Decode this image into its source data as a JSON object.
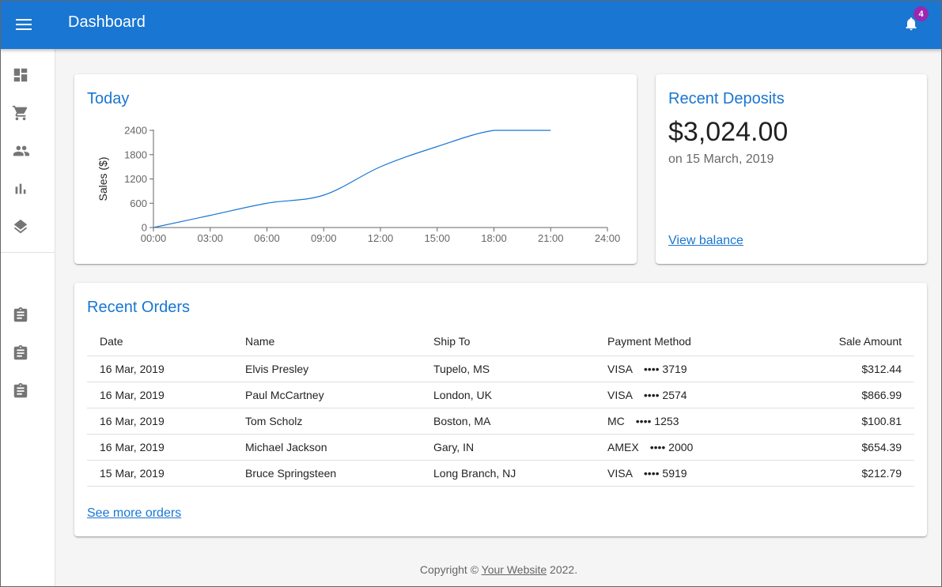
{
  "appbar": {
    "title": "Dashboard",
    "notification_count": "4",
    "color": "#1976d2",
    "icons": {
      "menu": "menu-icon",
      "notifications": "bell-icon"
    }
  },
  "drawer": {
    "main_items": [
      {
        "icon": "dashboard-icon"
      },
      {
        "icon": "shopping-cart-icon"
      },
      {
        "icon": "people-icon"
      },
      {
        "icon": "bar-chart-icon"
      },
      {
        "icon": "layers-icon"
      }
    ],
    "secondary_items": [
      {
        "icon": "assignment-icon"
      },
      {
        "icon": "assignment-icon"
      },
      {
        "icon": "assignment-icon"
      }
    ]
  },
  "today": {
    "title": "Today"
  },
  "chart_data": {
    "type": "line",
    "title": "",
    "xlabel": "",
    "ylabel": "Sales ($)",
    "x_ticks": [
      "00:00",
      "03:00",
      "06:00",
      "09:00",
      "12:00",
      "15:00",
      "18:00",
      "21:00",
      "24:00"
    ],
    "y_ticks": [
      "0",
      "600",
      "1200",
      "1800",
      "2400"
    ],
    "ylim": [
      0,
      2400
    ],
    "xlim": [
      0,
      24
    ],
    "color": "#1976d2",
    "series": [
      {
        "x": [
          0,
          3,
          6,
          9,
          12,
          15,
          18,
          21
        ],
        "values": [
          0,
          300,
          600,
          800,
          1500,
          2000,
          2400,
          2400
        ]
      }
    ]
  },
  "deposits": {
    "title": "Recent Deposits",
    "amount": "$3,024.00",
    "date": "on 15 March, 2019",
    "link": "View balance"
  },
  "orders": {
    "title": "Recent Orders",
    "columns": [
      "Date",
      "Name",
      "Ship To",
      "Payment Method",
      "Sale Amount"
    ],
    "rows": [
      {
        "date": "16 Mar, 2019",
        "name": "Elvis Presley",
        "ship_to": "Tupelo, MS",
        "pm_type": "VISA",
        "pm_num": "•••• 3719",
        "amount": "$312.44"
      },
      {
        "date": "16 Mar, 2019",
        "name": "Paul McCartney",
        "ship_to": "London, UK",
        "pm_type": "VISA",
        "pm_num": "•••• 2574",
        "amount": "$866.99"
      },
      {
        "date": "16 Mar, 2019",
        "name": "Tom Scholz",
        "ship_to": "Boston, MA",
        "pm_type": "MC",
        "pm_num": "•••• 1253",
        "amount": "$100.81"
      },
      {
        "date": "16 Mar, 2019",
        "name": "Michael Jackson",
        "ship_to": "Gary, IN",
        "pm_type": "AMEX",
        "pm_num": "•••• 2000",
        "amount": "$654.39"
      },
      {
        "date": "15 Mar, 2019",
        "name": "Bruce Springsteen",
        "ship_to": "Long Branch, NJ",
        "pm_type": "VISA",
        "pm_num": "•••• 5919",
        "amount": "$212.79"
      }
    ],
    "more_link": "See more orders"
  },
  "footer": {
    "prefix": "Copyright © ",
    "link": "Your Website",
    "suffix": " 2022."
  }
}
